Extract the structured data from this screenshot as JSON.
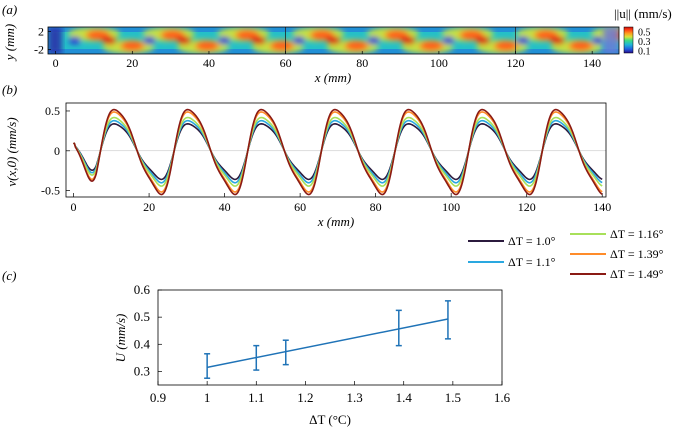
{
  "chart_data": [
    {
      "panel_label": "(a)",
      "type": "heatmap",
      "xlabel": "x (mm)",
      "ylabel": "y (mm)",
      "x_ticks": [
        0,
        20,
        40,
        60,
        80,
        100,
        120,
        140
      ],
      "y_ticks": [
        2,
        -2
      ],
      "xlim": [
        -2,
        147
      ],
      "ylim": [
        -3,
        3
      ],
      "colorbar": {
        "title": "||u|| (mm/s)",
        "ticks": [
          0.5,
          0.3,
          0.1
        ],
        "range": [
          0.05,
          0.6
        ],
        "colors": [
          "#2a0a8c",
          "#1f5fe0",
          "#1fb5d8",
          "#3ddc84",
          "#d8e33a",
          "#ff9a1f",
          "#ff3a14",
          "#c01010"
        ]
      },
      "note": "Velocity magnitude field with a periodic pattern of high-speed cells (period ~19.5 mm) along the channel."
    },
    {
      "panel_label": "(b)",
      "type": "line",
      "xlabel": "x (mm)",
      "ylabel": "v(x,0) (mm/s)",
      "x_ticks": [
        0,
        20,
        40,
        60,
        80,
        100,
        120,
        140
      ],
      "y_ticks": [
        0.5,
        0,
        -0.5
      ],
      "xlim": [
        -2,
        141
      ],
      "ylim": [
        -0.58,
        0.6
      ],
      "period": 19.5,
      "series": [
        {
          "name": "ΔT = 1.0°",
          "color": "#2b1a3d",
          "amplitude": 0.34
        },
        {
          "name": "ΔT = 1.1°",
          "color": "#2aa8e0",
          "amplitude": 0.38
        },
        {
          "name": "ΔT = 1.16°",
          "color": "#a8e05a",
          "amplitude": 0.42
        },
        {
          "name": "ΔT = 1.39°",
          "color": "#ff8c2a",
          "amplitude": 0.49
        },
        {
          "name": "ΔT = 1.49°",
          "color": "#8a1a14",
          "amplitude": 0.52
        }
      ]
    },
    {
      "panel_label": "(c)",
      "type": "scatter",
      "xlabel": "ΔT (°C)",
      "ylabel": "U (mm/s)",
      "x_ticks": [
        "0.9",
        "1",
        "1.1",
        "1.2",
        "1.3",
        "1.4",
        "1.5",
        "1.6"
      ],
      "y_ticks": [
        "0.3",
        "0.4",
        "0.5",
        "0.6"
      ],
      "xlim": [
        0.9,
        1.6
      ],
      "ylim": [
        0.25,
        0.6
      ],
      "color": "#1f73b7",
      "x": [
        1.0,
        1.1,
        1.16,
        1.39,
        1.49
      ],
      "y": [
        0.32,
        0.35,
        0.37,
        0.46,
        0.49
      ],
      "err": [
        0.045,
        0.045,
        0.045,
        0.065,
        0.07
      ],
      "fit": {
        "x": [
          1.0,
          1.49
        ],
        "y": [
          0.315,
          0.493
        ]
      }
    }
  ]
}
